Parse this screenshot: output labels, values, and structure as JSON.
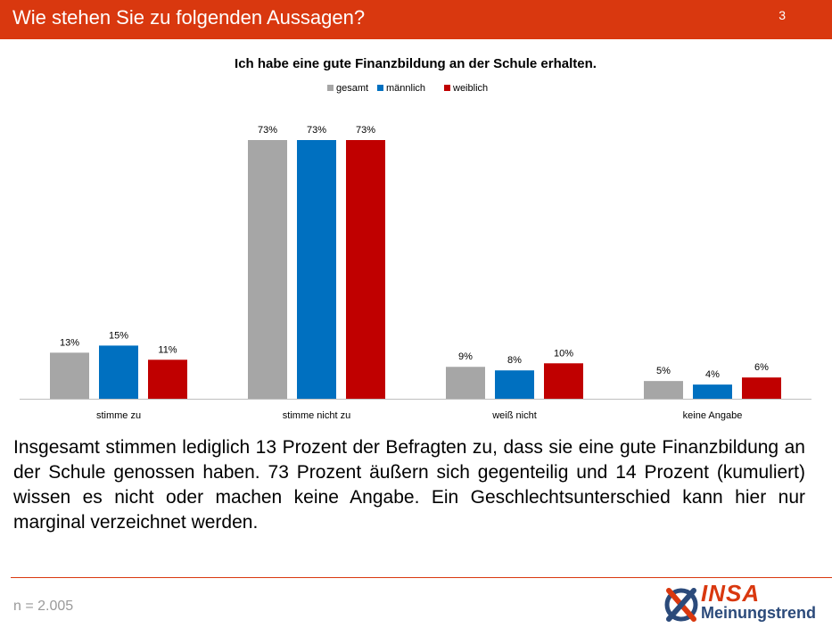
{
  "header": {
    "title": "Wie stehen Sie zu folgenden Aussagen?",
    "page_number": "3"
  },
  "chart_data": {
    "type": "bar",
    "title": "Ich habe eine gute Finanzbildung an der Schule erhalten.",
    "categories": [
      "stimme zu",
      "stimme nicht zu",
      "weiß nicht",
      "keine Angabe"
    ],
    "series": [
      {
        "name": "gesamt",
        "color": "#a6a6a6",
        "values": [
          13,
          73,
          9,
          5
        ],
        "labels": [
          "13%",
          "73%",
          "9%",
          "5%"
        ]
      },
      {
        "name": "männlich",
        "color": "#0070c0",
        "values": [
          15,
          73,
          8,
          4
        ],
        "labels": [
          "15%",
          "73%",
          "8%",
          "4%"
        ]
      },
      {
        "name": "weiblich",
        "color": "#c00000",
        "values": [
          11,
          73,
          10,
          6
        ],
        "labels": [
          "11%",
          "73%",
          "10%",
          "6%"
        ]
      }
    ],
    "ylim": [
      0,
      80
    ],
    "grid": false,
    "legend_position": "top-center"
  },
  "summary": "Insgesamt stimmen lediglich 13 Prozent der Befragten zu, dass sie eine gute Finanzbildung an der Schule genossen haben. 73 Prozent äußern sich gegenteilig und 14 Prozent (kumuliert) wissen es nicht oder machen keine Angabe. Ein Geschlechtsunterschied kann hier nur marginal verzeichnet werden.",
  "footer": {
    "sample": "n = 2.005",
    "logo_name": "INSA",
    "logo_tagline": "Meinungstrend",
    "logo_icon": "insa-cross-logo-icon"
  }
}
